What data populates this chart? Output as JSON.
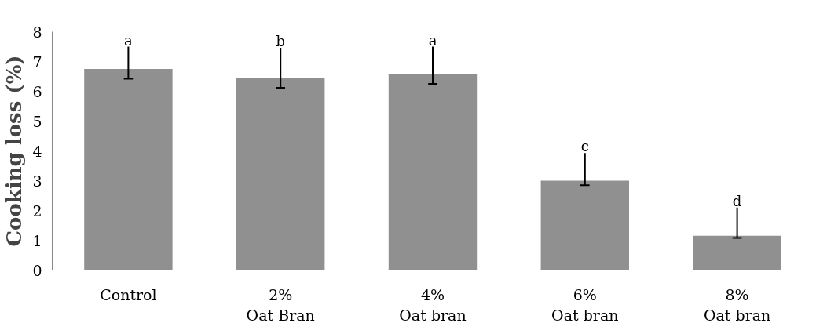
{
  "chart_data": {
    "type": "bar",
    "ylabel": "Cooking loss (%)",
    "categories": [
      "Control",
      "2%\nOat Bran",
      "4%\nOat bran",
      "6%\nOat bran",
      "8%\nOat bran"
    ],
    "values": [
      6.75,
      6.45,
      6.58,
      3.0,
      1.15
    ],
    "errors": [
      [
        6.42,
        7.5
      ],
      [
        6.12,
        7.46
      ],
      [
        6.25,
        7.5
      ],
      [
        2.85,
        3.93
      ],
      [
        1.08,
        2.1
      ]
    ],
    "color": "#909090",
    "ylim": [
      0,
      8
    ],
    "yticks": [
      0,
      1,
      2,
      3,
      4,
      5,
      6,
      7,
      8
    ],
    "grid": false,
    "annotations": [
      "a",
      "b",
      "a",
      "c",
      "d"
    ]
  }
}
